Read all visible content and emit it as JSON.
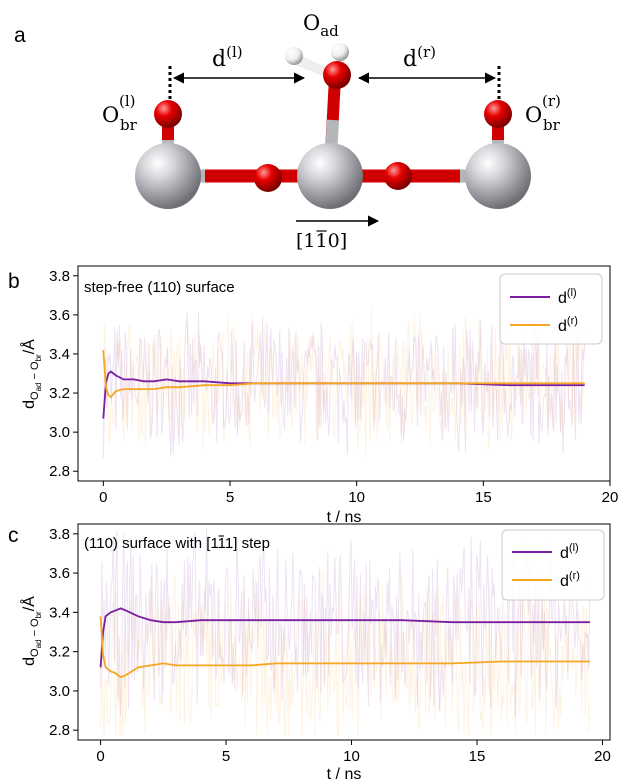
{
  "panels": {
    "a": {
      "letter": "a"
    },
    "b": {
      "letter": "b"
    },
    "c": {
      "letter": "c"
    }
  },
  "schematic": {
    "o_ad": {
      "base": "O",
      "sub": "ad"
    },
    "d_left": {
      "base": "d",
      "sup": "(l)"
    },
    "d_right": {
      "base": "d",
      "sup": "(r)"
    },
    "o_br_left": {
      "base": "O",
      "sub": "br",
      "sup": "(l)"
    },
    "o_br_right": {
      "base": "O",
      "sub": "br",
      "sup": "(r)"
    },
    "direction": {
      "open": "[1",
      "bar": "1",
      "close": "0]"
    },
    "colors": {
      "titanium": "#b4b6ba",
      "oxygen": "#e00000",
      "hydrogen": "#f2f2f2"
    }
  },
  "colors": {
    "d_left": "#7b1fa2",
    "d_right": "#f5a623"
  },
  "chart_data": [
    {
      "panel": "b",
      "type": "line",
      "inset_title": "step-free (110) surface",
      "xlabel": "t / ns",
      "ylabel": {
        "base": "d",
        "sub1": "O",
        "sub1sub": "ad",
        "dash": " − ",
        "sub2": "O",
        "sub2sub": "br",
        "unit": "/Å"
      },
      "xlim": [
        -1,
        20
      ],
      "ylim": [
        2.75,
        3.85
      ],
      "xticks": [
        0,
        5,
        10,
        15,
        20
      ],
      "yticks": [
        "2.8",
        "3.0",
        "3.2",
        "3.4",
        "3.6",
        "3.8"
      ],
      "legend": "top-right",
      "series": [
        {
          "name": "d(l)",
          "legend_base": "d",
          "legend_sup": "(l)",
          "color": "#7b1fa2",
          "x": [
            0,
            0.1,
            0.2,
            0.3,
            0.5,
            0.8,
            1.2,
            1.6,
            2,
            2.5,
            3,
            4,
            5,
            6,
            8,
            10,
            12,
            14,
            16,
            18,
            19
          ],
          "y": [
            3.07,
            3.25,
            3.3,
            3.31,
            3.29,
            3.27,
            3.27,
            3.26,
            3.26,
            3.27,
            3.26,
            3.26,
            3.25,
            3.25,
            3.25,
            3.25,
            3.25,
            3.25,
            3.24,
            3.24,
            3.24
          ]
        },
        {
          "name": "d(r)",
          "legend_base": "d",
          "legend_sup": "(r)",
          "color": "#f5a623",
          "x": [
            0,
            0.1,
            0.2,
            0.3,
            0.5,
            0.8,
            1.2,
            1.6,
            2,
            2.5,
            3,
            4,
            5,
            6,
            8,
            10,
            12,
            14,
            16,
            18,
            19
          ],
          "y": [
            3.42,
            3.23,
            3.19,
            3.18,
            3.21,
            3.22,
            3.22,
            3.22,
            3.22,
            3.23,
            3.23,
            3.24,
            3.24,
            3.25,
            3.25,
            3.25,
            3.25,
            3.25,
            3.25,
            3.25,
            3.25
          ]
        }
      ],
      "noise_band": [
        2.85,
        3.62
      ]
    },
    {
      "panel": "c",
      "type": "line",
      "inset_title": {
        "pre": "(110) surface with [1",
        "bar": "1",
        "post": "1] step"
      },
      "xlabel": "t / ns",
      "ylabel": {
        "base": "d",
        "sub1": "O",
        "sub1sub": "ad",
        "dash": " − ",
        "sub2": "O",
        "sub2sub": "br",
        "unit": "/Å"
      },
      "xlim": [
        -0.9,
        20.3
      ],
      "ylim": [
        2.75,
        3.85
      ],
      "xticks": [
        0,
        5,
        10,
        15,
        20
      ],
      "yticks": [
        "2.8",
        "3.0",
        "3.2",
        "3.4",
        "3.6",
        "3.8"
      ],
      "legend": "top-right",
      "series": [
        {
          "name": "d(l)",
          "legend_base": "d",
          "legend_sup": "(l)",
          "color": "#7b1fa2",
          "x": [
            0,
            0.1,
            0.2,
            0.4,
            0.6,
            0.8,
            1,
            1.5,
            2,
            2.5,
            3,
            4,
            5,
            6,
            7,
            8,
            10,
            12,
            14,
            16,
            18,
            19.5
          ],
          "y": [
            3.12,
            3.3,
            3.38,
            3.4,
            3.41,
            3.42,
            3.41,
            3.38,
            3.36,
            3.35,
            3.35,
            3.36,
            3.36,
            3.36,
            3.36,
            3.36,
            3.36,
            3.36,
            3.35,
            3.35,
            3.35,
            3.35
          ]
        },
        {
          "name": "d(r)",
          "legend_base": "d",
          "legend_sup": "(r)",
          "color": "#f5a623",
          "x": [
            0,
            0.1,
            0.2,
            0.4,
            0.6,
            0.8,
            1,
            1.5,
            2,
            2.5,
            3,
            4,
            5,
            6,
            7,
            8,
            10,
            12,
            14,
            16,
            18,
            19.5
          ],
          "y": [
            3.38,
            3.18,
            3.12,
            3.1,
            3.09,
            3.07,
            3.08,
            3.12,
            3.13,
            3.14,
            3.13,
            3.13,
            3.13,
            3.13,
            3.14,
            3.14,
            3.14,
            3.14,
            3.14,
            3.15,
            3.15,
            3.15
          ]
        }
      ],
      "noise_band": [
        2.8,
        3.82
      ]
    }
  ]
}
